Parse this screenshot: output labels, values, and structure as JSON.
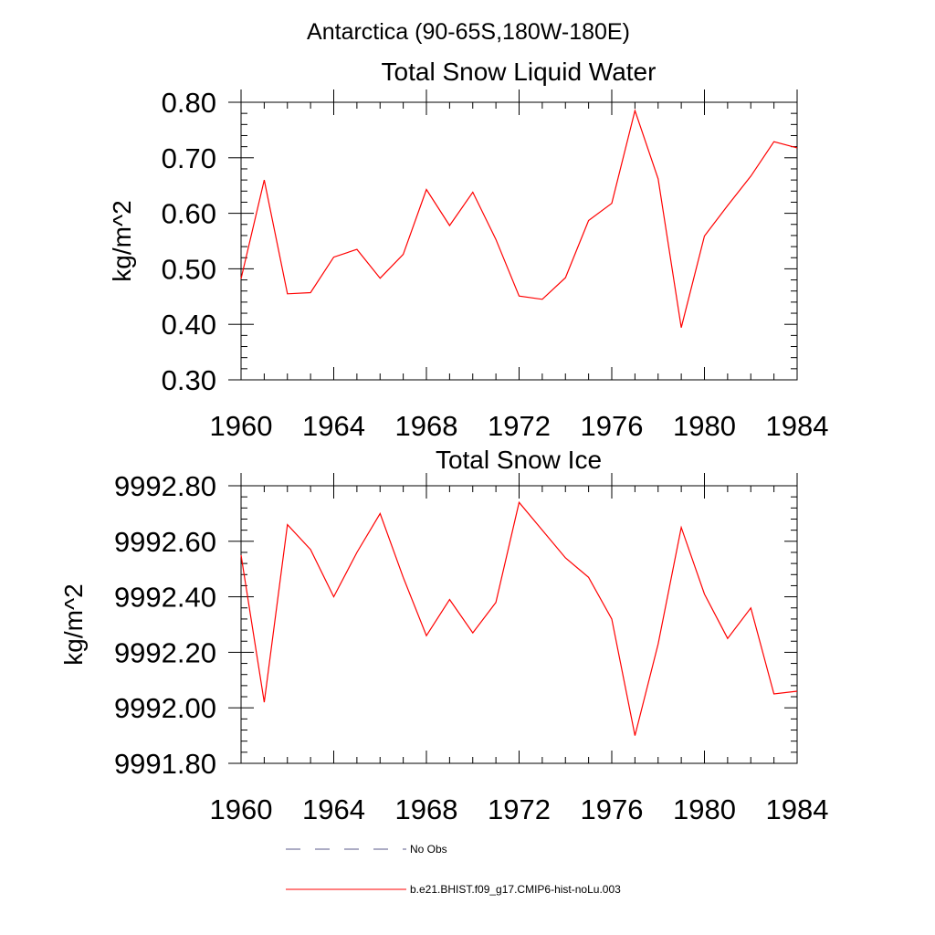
{
  "figure": {
    "title": "Antarctica (90-65S,180W-180E)"
  },
  "chart_data": [
    {
      "type": "line",
      "title": "Total Snow Liquid Water",
      "xlabel": "",
      "ylabel": "kg/m^2",
      "xlim": [
        1960,
        1984
      ],
      "ylim": [
        0.3,
        0.8
      ],
      "xticks": [
        1960,
        1964,
        1968,
        1972,
        1976,
        1980,
        1984
      ],
      "xtick_labels": [
        "1960",
        "1964",
        "1968",
        "1972",
        "1976",
        "1980",
        "1984"
      ],
      "yticks": [
        0.3,
        0.4,
        0.5,
        0.6,
        0.7,
        0.8
      ],
      "ytick_labels": [
        "0.30",
        "0.40",
        "0.50",
        "0.60",
        "0.70",
        "0.80"
      ],
      "grid": false,
      "series": [
        {
          "name": "b.e21.BHIST.f09_g17.CMIP6-hist-noLu.003",
          "color": "#ff0000",
          "x": [
            1960,
            1961,
            1962,
            1963,
            1964,
            1965,
            1966,
            1967,
            1968,
            1969,
            1970,
            1971,
            1972,
            1973,
            1974,
            1975,
            1976,
            1977,
            1978,
            1979,
            1980,
            1981,
            1982,
            1983,
            1984
          ],
          "y": [
            0.482,
            0.66,
            0.455,
            0.457,
            0.521,
            0.535,
            0.483,
            0.526,
            0.643,
            0.578,
            0.638,
            0.553,
            0.451,
            0.445,
            0.484,
            0.587,
            0.618,
            0.785,
            0.662,
            0.394,
            0.559,
            0.614,
            0.667,
            0.729,
            0.718
          ]
        }
      ]
    },
    {
      "type": "line",
      "title": "Total Snow Ice",
      "xlabel": "",
      "ylabel": "kg/m^2",
      "xlim": [
        1960,
        1984
      ],
      "ylim": [
        9991.8,
        9992.8
      ],
      "xticks": [
        1960,
        1964,
        1968,
        1972,
        1976,
        1980,
        1984
      ],
      "xtick_labels": [
        "1960",
        "1964",
        "1968",
        "1972",
        "1976",
        "1980",
        "1984"
      ],
      "yticks": [
        9991.8,
        9992.0,
        9992.2,
        9992.4,
        9992.6,
        9992.8
      ],
      "ytick_labels": [
        "9991.80",
        "9992.00",
        "9992.20",
        "9992.40",
        "9992.60",
        "9992.80"
      ],
      "grid": false,
      "series": [
        {
          "name": "b.e21.BHIST.f09_g17.CMIP6-hist-noLu.003",
          "color": "#ff0000",
          "x": [
            1960,
            1961,
            1962,
            1963,
            1964,
            1965,
            1966,
            1967,
            1968,
            1969,
            1970,
            1971,
            1972,
            1973,
            1974,
            1975,
            1976,
            1977,
            1978,
            1979,
            1980,
            1981,
            1982,
            1983,
            1984
          ],
          "y": [
            9992.55,
            9992.02,
            9992.66,
            9992.57,
            9992.4,
            9992.56,
            9992.7,
            9992.47,
            9992.26,
            9992.39,
            9992.27,
            9992.38,
            9992.74,
            9992.64,
            9992.54,
            9992.47,
            9992.32,
            9991.9,
            9992.23,
            9992.65,
            9992.41,
            9992.25,
            9992.36,
            9992.05,
            9992.06
          ]
        }
      ]
    }
  ],
  "legend": {
    "placement": "bottom",
    "entries": [
      {
        "label": "No Obs",
        "style": "dashed",
        "color": "#5a5a8a"
      },
      {
        "label": "b.e21.BHIST.f09_g17.CMIP6-hist-noLu.003",
        "style": "solid",
        "color": "#ff0000"
      }
    ]
  }
}
